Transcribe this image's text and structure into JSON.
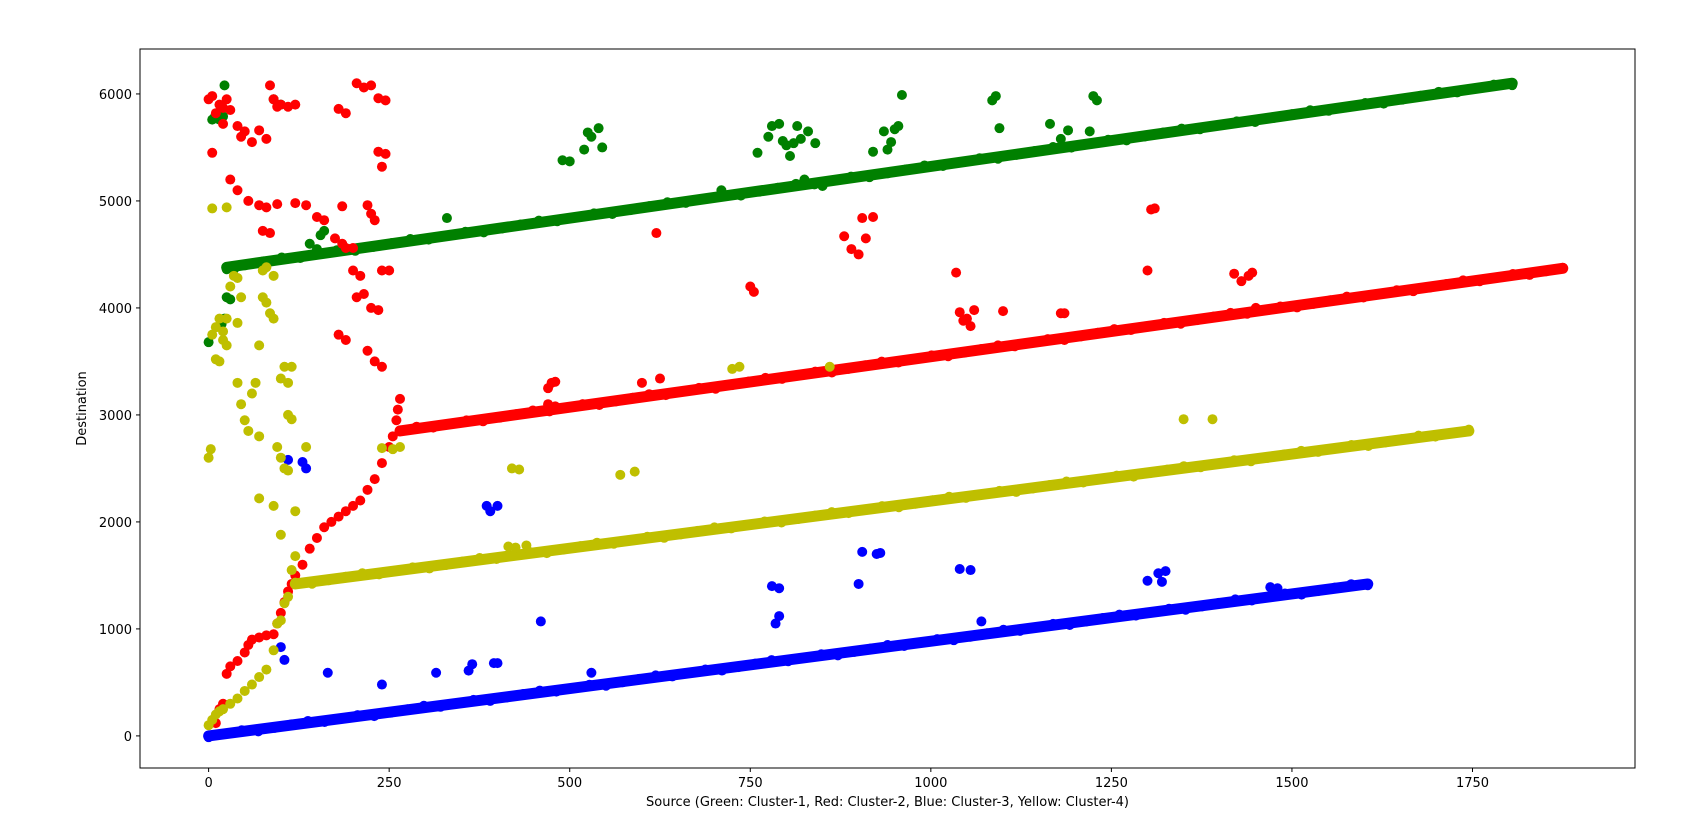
{
  "chart_data": {
    "type": "scatter",
    "title": "",
    "xlabel": "Source (Green: Cluster-1, Red: Cluster-2, Blue: Cluster-3, Yellow: Cluster-4)",
    "ylabel": "Destination",
    "xlim": [
      -95,
      1975
    ],
    "ylim": [
      -300,
      6420
    ],
    "xticks": [
      0,
      250,
      500,
      750,
      1000,
      1250,
      1500,
      1750
    ],
    "yticks": [
      0,
      1000,
      2000,
      3000,
      4000,
      5000,
      6000
    ],
    "grid": false,
    "series": [
      {
        "color": "#008000",
        "trend": {
          "x": [
            25,
            1805
          ],
          "y": [
            4380,
            6100
          ]
        },
        "points": [
          [
            0,
            3680
          ],
          [
            5,
            5760
          ],
          [
            8,
            5780
          ],
          [
            15,
            5760
          ],
          [
            20,
            5790
          ],
          [
            22,
            6080
          ],
          [
            18,
            3850
          ],
          [
            22,
            3900
          ],
          [
            25,
            4100
          ],
          [
            30,
            4080
          ],
          [
            35,
            4360
          ],
          [
            90,
            5950
          ],
          [
            100,
            5900
          ],
          [
            140,
            4600
          ],
          [
            150,
            4550
          ],
          [
            155,
            4680
          ],
          [
            160,
            4720
          ],
          [
            330,
            4840
          ],
          [
            490,
            5380
          ],
          [
            500,
            5370
          ],
          [
            520,
            5480
          ],
          [
            525,
            5640
          ],
          [
            530,
            5600
          ],
          [
            540,
            5680
          ],
          [
            545,
            5500
          ],
          [
            710,
            5100
          ],
          [
            760,
            5450
          ],
          [
            775,
            5600
          ],
          [
            780,
            5700
          ],
          [
            790,
            5720
          ],
          [
            795,
            5560
          ],
          [
            800,
            5520
          ],
          [
            805,
            5420
          ],
          [
            810,
            5540
          ],
          [
            815,
            5700
          ],
          [
            820,
            5580
          ],
          [
            825,
            5200
          ],
          [
            830,
            5650
          ],
          [
            840,
            5540
          ],
          [
            850,
            5140
          ],
          [
            920,
            5460
          ],
          [
            935,
            5650
          ],
          [
            940,
            5480
          ],
          [
            945,
            5550
          ],
          [
            950,
            5670
          ],
          [
            955,
            5700
          ],
          [
            960,
            5990
          ],
          [
            1085,
            5940
          ],
          [
            1090,
            5980
          ],
          [
            1095,
            5680
          ],
          [
            1165,
            5720
          ],
          [
            1180,
            5580
          ],
          [
            1190,
            5660
          ],
          [
            1220,
            5650
          ],
          [
            1225,
            5980
          ],
          [
            1230,
            5940
          ]
        ]
      },
      {
        "color": "#ff0000",
        "trend": {
          "x": [
            265,
            1875
          ],
          "y": [
            2850,
            4370
          ]
        },
        "points": [
          [
            0,
            5950
          ],
          [
            5,
            5980
          ],
          [
            10,
            5820
          ],
          [
            15,
            5900
          ],
          [
            20,
            5870
          ],
          [
            25,
            5950
          ],
          [
            30,
            5850
          ],
          [
            20,
            5720
          ],
          [
            5,
            5450
          ],
          [
            40,
            5700
          ],
          [
            45,
            5600
          ],
          [
            50,
            5650
          ],
          [
            60,
            5550
          ],
          [
            70,
            5660
          ],
          [
            80,
            5580
          ],
          [
            85,
            6080
          ],
          [
            90,
            5950
          ],
          [
            95,
            5880
          ],
          [
            100,
            5900
          ],
          [
            110,
            5880
          ],
          [
            120,
            5900
          ],
          [
            30,
            5200
          ],
          [
            40,
            5100
          ],
          [
            55,
            5000
          ],
          [
            70,
            4960
          ],
          [
            80,
            4940
          ],
          [
            95,
            4970
          ],
          [
            120,
            4980
          ],
          [
            135,
            4960
          ],
          [
            150,
            4850
          ],
          [
            160,
            4820
          ],
          [
            175,
            4650
          ],
          [
            185,
            4600
          ],
          [
            190,
            4560
          ],
          [
            200,
            4560
          ],
          [
            185,
            4950
          ],
          [
            220,
            4960
          ],
          [
            75,
            4720
          ],
          [
            85,
            4700
          ],
          [
            180,
            5860
          ],
          [
            190,
            5820
          ],
          [
            205,
            6100
          ],
          [
            215,
            6060
          ],
          [
            225,
            6080
          ],
          [
            235,
            5960
          ],
          [
            245,
            5940
          ],
          [
            235,
            5460
          ],
          [
            245,
            5440
          ],
          [
            240,
            5320
          ],
          [
            225,
            4880
          ],
          [
            230,
            4820
          ],
          [
            200,
            4350
          ],
          [
            210,
            4300
          ],
          [
            240,
            4350
          ],
          [
            250,
            4350
          ],
          [
            205,
            4100
          ],
          [
            215,
            4130
          ],
          [
            225,
            4000
          ],
          [
            235,
            3980
          ],
          [
            180,
            3750
          ],
          [
            190,
            3700
          ],
          [
            220,
            3600
          ],
          [
            230,
            3500
          ],
          [
            240,
            3450
          ],
          [
            10,
            120
          ],
          [
            15,
            250
          ],
          [
            20,
            300
          ],
          [
            25,
            580
          ],
          [
            30,
            650
          ],
          [
            40,
            700
          ],
          [
            50,
            780
          ],
          [
            55,
            850
          ],
          [
            60,
            900
          ],
          [
            70,
            920
          ],
          [
            80,
            940
          ],
          [
            90,
            950
          ],
          [
            95,
            1050
          ],
          [
            100,
            1150
          ],
          [
            105,
            1250
          ],
          [
            110,
            1350
          ],
          [
            115,
            1420
          ],
          [
            120,
            1500
          ],
          [
            130,
            1600
          ],
          [
            140,
            1750
          ],
          [
            150,
            1850
          ],
          [
            160,
            1950
          ],
          [
            170,
            2000
          ],
          [
            180,
            2050
          ],
          [
            190,
            2100
          ],
          [
            200,
            2150
          ],
          [
            210,
            2200
          ],
          [
            220,
            2300
          ],
          [
            230,
            2400
          ],
          [
            240,
            2550
          ],
          [
            250,
            2700
          ],
          [
            255,
            2800
          ],
          [
            260,
            2950
          ],
          [
            262,
            3050
          ],
          [
            265,
            3150
          ],
          [
            470,
            3250
          ],
          [
            475,
            3300
          ],
          [
            480,
            3310
          ],
          [
            470,
            3100
          ],
          [
            480,
            3080
          ],
          [
            600,
            3300
          ],
          [
            625,
            3340
          ],
          [
            620,
            4700
          ],
          [
            750,
            4200
          ],
          [
            755,
            4150
          ],
          [
            880,
            4670
          ],
          [
            890,
            4550
          ],
          [
            900,
            4500
          ],
          [
            905,
            4840
          ],
          [
            910,
            4650
          ],
          [
            920,
            4850
          ],
          [
            1035,
            4330
          ],
          [
            1040,
            3960
          ],
          [
            1045,
            3880
          ],
          [
            1050,
            3900
          ],
          [
            1055,
            3830
          ],
          [
            1060,
            3980
          ],
          [
            1100,
            3970
          ],
          [
            1180,
            3950
          ],
          [
            1185,
            3950
          ],
          [
            1300,
            4350
          ],
          [
            1305,
            4920
          ],
          [
            1310,
            4930
          ],
          [
            1420,
            4320
          ],
          [
            1430,
            4250
          ],
          [
            1440,
            4300
          ],
          [
            1445,
            4330
          ],
          [
            1450,
            4000
          ]
        ]
      },
      {
        "color": "#0000ff",
        "trend": {
          "x": [
            0,
            1605
          ],
          "y": [
            0,
            1420
          ]
        },
        "points": [
          [
            100,
            830
          ],
          [
            105,
            710
          ],
          [
            110,
            2580
          ],
          [
            130,
            2560
          ],
          [
            135,
            2500
          ],
          [
            165,
            590
          ],
          [
            240,
            480
          ],
          [
            315,
            590
          ],
          [
            360,
            610
          ],
          [
            365,
            670
          ],
          [
            385,
            2150
          ],
          [
            390,
            2100
          ],
          [
            395,
            680
          ],
          [
            400,
            680
          ],
          [
            400,
            2150
          ],
          [
            460,
            1070
          ],
          [
            530,
            590
          ],
          [
            780,
            1400
          ],
          [
            790,
            1380
          ],
          [
            785,
            1050
          ],
          [
            790,
            1120
          ],
          [
            900,
            1420
          ],
          [
            905,
            1720
          ],
          [
            925,
            1700
          ],
          [
            930,
            1710
          ],
          [
            1040,
            1560
          ],
          [
            1055,
            1550
          ],
          [
            1070,
            1070
          ],
          [
            1300,
            1450
          ],
          [
            1315,
            1520
          ],
          [
            1325,
            1540
          ],
          [
            1320,
            1440
          ],
          [
            1470,
            1390
          ],
          [
            1480,
            1380
          ]
        ]
      },
      {
        "color": "#bfbf00",
        "trend": {
          "x": [
            120,
            1745
          ],
          "y": [
            1420,
            2850
          ]
        },
        "points": [
          [
            0,
            2600
          ],
          [
            3,
            2680
          ],
          [
            5,
            4930
          ],
          [
            25,
            4940
          ],
          [
            0,
            100
          ],
          [
            5,
            150
          ],
          [
            10,
            200
          ],
          [
            15,
            230
          ],
          [
            20,
            250
          ],
          [
            30,
            300
          ],
          [
            40,
            350
          ],
          [
            50,
            420
          ],
          [
            60,
            480
          ],
          [
            70,
            550
          ],
          [
            80,
            620
          ],
          [
            90,
            800
          ],
          [
            95,
            1050
          ],
          [
            100,
            1080
          ],
          [
            105,
            1240
          ],
          [
            110,
            1300
          ],
          [
            115,
            1550
          ],
          [
            120,
            1680
          ],
          [
            10,
            3520
          ],
          [
            15,
            3500
          ],
          [
            20,
            3700
          ],
          [
            25,
            3900
          ],
          [
            30,
            4200
          ],
          [
            35,
            4300
          ],
          [
            40,
            4280
          ],
          [
            45,
            4100
          ],
          [
            40,
            3860
          ],
          [
            5,
            3750
          ],
          [
            10,
            3820
          ],
          [
            15,
            3900
          ],
          [
            20,
            3780
          ],
          [
            25,
            3650
          ],
          [
            40,
            3300
          ],
          [
            45,
            3100
          ],
          [
            50,
            2950
          ],
          [
            55,
            2850
          ],
          [
            60,
            3200
          ],
          [
            65,
            3300
          ],
          [
            70,
            2800
          ],
          [
            75,
            4100
          ],
          [
            80,
            4050
          ],
          [
            85,
            3950
          ],
          [
            90,
            3900
          ],
          [
            80,
            4380
          ],
          [
            75,
            4350
          ],
          [
            90,
            4300
          ],
          [
            70,
            3650
          ],
          [
            95,
            2700
          ],
          [
            100,
            2600
          ],
          [
            105,
            2500
          ],
          [
            110,
            3300
          ],
          [
            100,
            3340
          ],
          [
            105,
            3450
          ],
          [
            115,
            3450
          ],
          [
            110,
            3000
          ],
          [
            115,
            2960
          ],
          [
            110,
            2480
          ],
          [
            90,
            2150
          ],
          [
            120,
            2100
          ],
          [
            100,
            1880
          ],
          [
            70,
            2220
          ],
          [
            135,
            2700
          ],
          [
            240,
            2690
          ],
          [
            255,
            2680
          ],
          [
            265,
            2700
          ],
          [
            430,
            2490
          ],
          [
            420,
            2500
          ],
          [
            425,
            1760
          ],
          [
            440,
            1780
          ],
          [
            415,
            1770
          ],
          [
            570,
            2440
          ],
          [
            590,
            2470
          ],
          [
            725,
            3430
          ],
          [
            735,
            3450
          ],
          [
            860,
            3450
          ],
          [
            1350,
            2960
          ],
          [
            1390,
            2960
          ]
        ]
      }
    ]
  }
}
